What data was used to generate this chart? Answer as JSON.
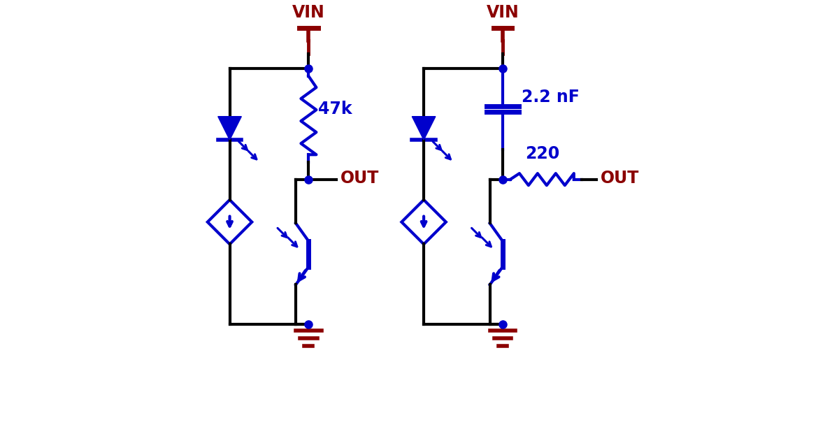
{
  "bg_color": "#ffffff",
  "blue": "#0000cc",
  "dark_red": "#8b0000",
  "black": "#000000",
  "line_width": 3.0,
  "comp_lw": 3.0,
  "dot_size": 8,
  "figsize": [
    12.0,
    6.21
  ],
  "dpi": 100,
  "label_47k": "47k",
  "label_220": "220",
  "label_2p2nf": "2.2 nF",
  "label_out": "OUT",
  "label_vin": "VIN",
  "font_size": 17
}
